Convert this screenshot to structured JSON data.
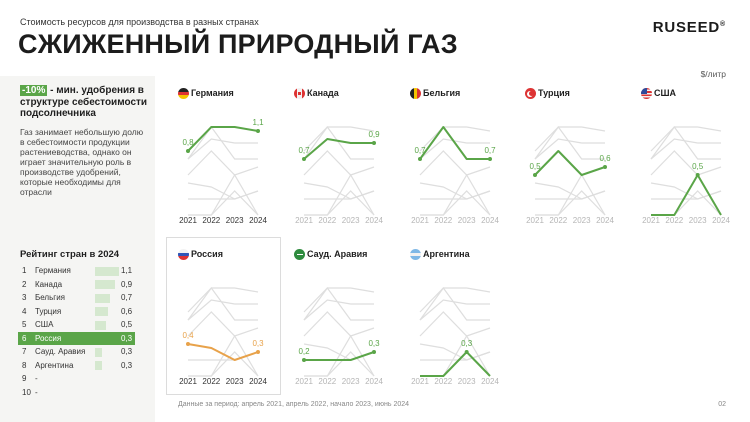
{
  "header": {
    "subtitle": "Стоимость ресурсов для производства в разных странах",
    "title": "СЖИЖЕННЫЙ ПРИРОДНЫЙ ГАЗ",
    "logo": "RUSEED",
    "logo_mark": "®",
    "unit": "$/литр"
  },
  "highlight": {
    "badge": "-10%",
    "text": " - мин. удобрения в структуре себестоимости подсолнечника"
  },
  "description": "Газ занимает небольшую долю в себестоимости продукции растениеводства, однако он играет значительную роль в производстве удобрений, которые необходимы для отрасли",
  "ranking": {
    "title": "Рейтинг стран в 2024",
    "items": [
      {
        "rank": "1",
        "name": "Германия",
        "value": "1,1",
        "num": 1.1
      },
      {
        "rank": "2",
        "name": "Канада",
        "value": "0,9",
        "num": 0.9
      },
      {
        "rank": "3",
        "name": "Бельгия",
        "value": "0,7",
        "num": 0.7
      },
      {
        "rank": "4",
        "name": "Турция",
        "value": "0,6",
        "num": 0.6
      },
      {
        "rank": "5",
        "name": "США",
        "value": "0,5",
        "num": 0.5
      },
      {
        "rank": "6",
        "name": "Россия",
        "value": "0,3",
        "num": 0.3,
        "active": true
      },
      {
        "rank": "7",
        "name": "Сауд. Аравия",
        "value": "0,3",
        "num": 0.3
      },
      {
        "rank": "8",
        "name": "Аргентина",
        "value": "0,3",
        "num": 0.3
      },
      {
        "rank": "9",
        "name": "-",
        "value": "",
        "num": 0
      },
      {
        "rank": "10",
        "name": "-",
        "value": "",
        "num": 0
      }
    ]
  },
  "chart_data": {
    "type": "line",
    "x": [
      "2021",
      "2022",
      "2023",
      "2024"
    ],
    "series": [
      {
        "name": "Германия",
        "flag": "de",
        "values": [
          0.8,
          1.1,
          1.1,
          1.05
        ],
        "labels": [
          "0,8",
          "",
          "",
          "1,1"
        ],
        "color": "#5aa548"
      },
      {
        "name": "Канада",
        "flag": "ca",
        "values": [
          0.7,
          0.95,
          0.9,
          0.9
        ],
        "labels": [
          "0,7",
          "",
          "",
          "0,9"
        ],
        "color": "#5aa548"
      },
      {
        "name": "Бельгия",
        "flag": "be",
        "values": [
          0.7,
          1.1,
          0.7,
          0.7
        ],
        "labels": [
          "0,7",
          "",
          "",
          "0,7"
        ],
        "color": "#5aa548"
      },
      {
        "name": "Турция",
        "flag": "tr",
        "values": [
          0.5,
          0.8,
          0.5,
          0.6
        ],
        "labels": [
          "0,5",
          "",
          "",
          "0,6"
        ],
        "color": "#5aa548"
      },
      {
        "name": "США",
        "flag": "us",
        "values": [
          0.0,
          0.0,
          0.5,
          0.0
        ],
        "labels": [
          "",
          "",
          "0,5",
          ""
        ],
        "color": "#5aa548"
      },
      {
        "name": "Россия",
        "flag": "ru",
        "values": [
          0.4,
          0.35,
          0.2,
          0.3
        ],
        "labels": [
          "0,4",
          "",
          "",
          "0,3"
        ],
        "color": "#e8a24a"
      },
      {
        "name": "Сауд. Аравия",
        "flag": "sa",
        "values": [
          0.2,
          0.2,
          0.2,
          0.3
        ],
        "labels": [
          "0,2",
          "",
          "",
          "0,3"
        ],
        "color": "#5aa548"
      },
      {
        "name": "Аргентина",
        "flag": "ar",
        "values": [
          0.0,
          0.0,
          0.3,
          0.0
        ],
        "labels": [
          "",
          "",
          "0,3",
          ""
        ],
        "color": "#5aa548"
      }
    ],
    "ylim": [
      0,
      1.3
    ],
    "grid": false
  },
  "footer": "Данные за период: апрель 2021, апрель 2022, начало 2023, июнь 2024",
  "page_number": "02"
}
